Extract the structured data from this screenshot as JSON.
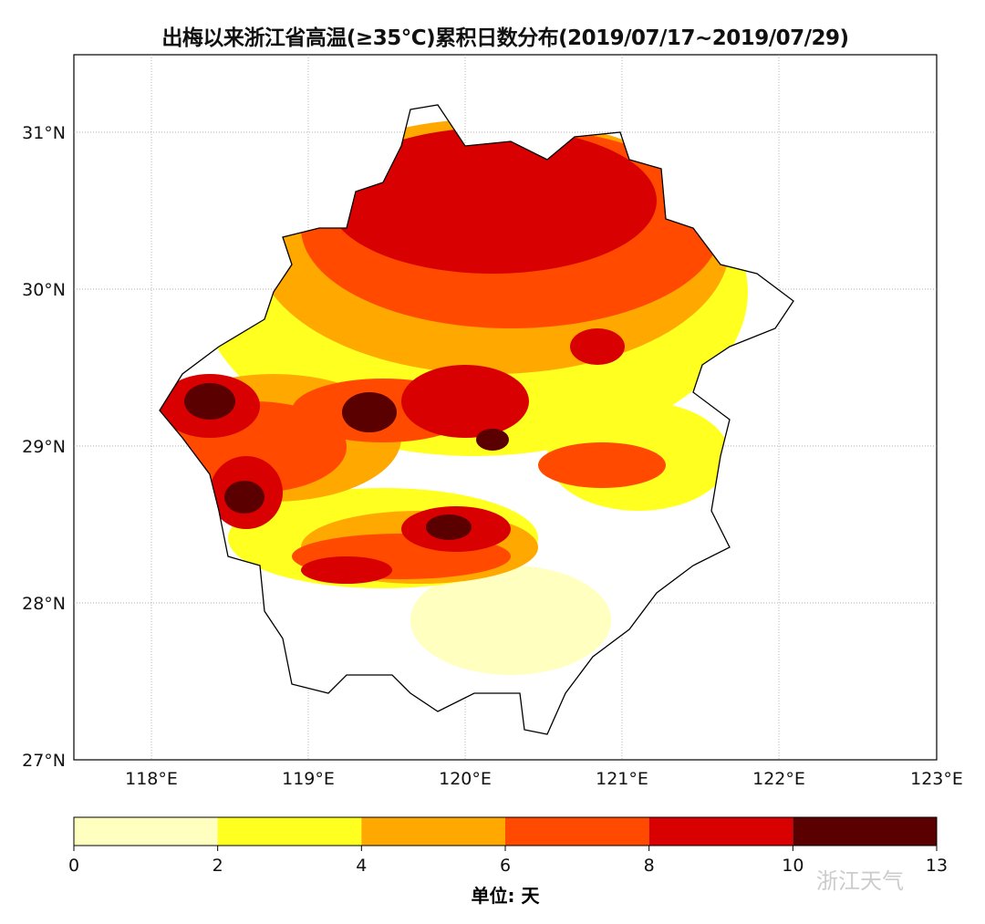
{
  "title": "出梅以来浙江省高温(≥35°C)累积日数分布(2019/07/17~2019/07/29)",
  "map": {
    "region": "浙江省",
    "lat_ticks": [
      "27°N",
      "28°N",
      "29°N",
      "30°N",
      "31°N"
    ],
    "lon_ticks": [
      "118°E",
      "119°E",
      "120°E",
      "121°E",
      "122°E",
      "123°E"
    ],
    "extent": {
      "lon": [
        117.5,
        123
      ],
      "lat": [
        27,
        31.5
      ]
    }
  },
  "colorbar": {
    "levels": [
      0,
      2,
      4,
      6,
      8,
      10,
      13
    ],
    "tick_labels": [
      "0",
      "2",
      "4",
      "6",
      "8",
      "10",
      "13"
    ],
    "colors": [
      "#ffffc0",
      "#ffff20",
      "#ffa800",
      "#ff4a00",
      "#d80000",
      "#5a0000"
    ],
    "unit_label": "单位: 天"
  },
  "watermark": "浙江天气"
}
